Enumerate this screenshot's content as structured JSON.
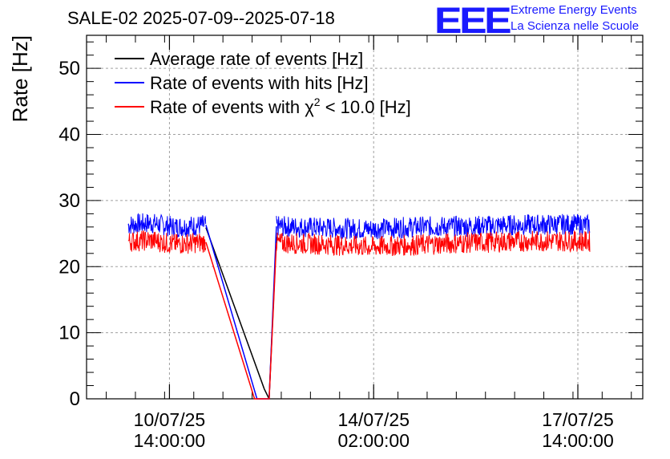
{
  "header": {
    "title": "SALE-02 2025-07-09--2025-07-18",
    "logo_mark": "EEE",
    "logo_line1": "Extreme Energy Events",
    "logo_line2": "La Scienza nelle Scuole"
  },
  "colors": {
    "average": "#000000",
    "hits": "#0000ff",
    "chi2": "#ff0000",
    "grid": "#a0a0a0",
    "logo": "#1a1aff"
  },
  "chart_data": {
    "type": "line",
    "title": "SALE-02 2025-07-09--2025-07-18",
    "ylabel": "Rate [Hz]",
    "xlabel": "",
    "ylim": [
      0,
      55
    ],
    "yticks": [
      0,
      10,
      20,
      30,
      40,
      50
    ],
    "x_unit": "hours since 2025-07-09 00:00",
    "xlim": [
      3.9,
      232.7
    ],
    "xticks": [
      {
        "x": 38,
        "line1": "10/07/25",
        "line2": "14:00:00"
      },
      {
        "x": 122,
        "line1": "14/07/25",
        "line2": "02:00:00"
      },
      {
        "x": 206,
        "line1": "17/07/25",
        "line2": "14:00:00"
      }
    ],
    "grid": true,
    "legend_position": "top-left",
    "series": [
      {
        "name": "Average rate of events [Hz]",
        "color": "#000000",
        "segments": [
          [
            [
              53,
              25.9
            ],
            [
              77,
              1.5
            ],
            [
              79,
              0.0
            ],
            [
              82,
              24.5
            ]
          ]
        ]
      },
      {
        "name": "Rate of events with hits [Hz]",
        "color": "#0000ff",
        "noise": true,
        "segments": [
          [
            [
              21,
              26.3
            ],
            [
              30,
              26.6
            ],
            [
              40,
              26.0
            ],
            [
              53,
              26.3
            ]
          ],
          [
            [
              82,
              26.1
            ],
            [
              100,
              25.9
            ],
            [
              120,
              25.7
            ],
            [
              140,
              26.0
            ],
            [
              160,
              26.1
            ],
            [
              180,
              26.3
            ],
            [
              200,
              26.4
            ],
            [
              211,
              26.3
            ]
          ]
        ],
        "drop": [
          [
            53,
            26.3
          ],
          [
            74,
            0.0
          ],
          [
            79,
            0.0
          ],
          [
            82,
            26.1
          ]
        ]
      },
      {
        "name": "Rate of events with χ² < 10.0 [Hz]",
        "legend_prefix": "Rate of events with ",
        "legend_chi": "χ",
        "legend_sup": "2",
        "legend_suffix": " < 10.0 [Hz]",
        "color": "#ff0000",
        "noise": true,
        "segments": [
          [
            [
              21,
              23.8
            ],
            [
              30,
              24.0
            ],
            [
              40,
              23.4
            ],
            [
              53,
              23.7
            ]
          ],
          [
            [
              82,
              23.6
            ],
            [
              100,
              23.4
            ],
            [
              120,
              23.0
            ],
            [
              140,
              23.3
            ],
            [
              160,
              23.6
            ],
            [
              180,
              23.8
            ],
            [
              200,
              23.9
            ],
            [
              211,
              23.8
            ]
          ]
        ],
        "drop": [
          [
            53,
            23.7
          ],
          [
            73,
            0.0
          ],
          [
            79,
            0.0
          ],
          [
            82,
            23.6
          ]
        ]
      }
    ]
  }
}
